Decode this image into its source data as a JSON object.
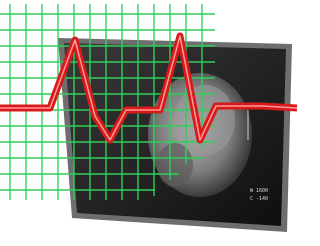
{
  "screen": {
    "window_label": "W 1600",
    "center_label": "C -140"
  }
}
